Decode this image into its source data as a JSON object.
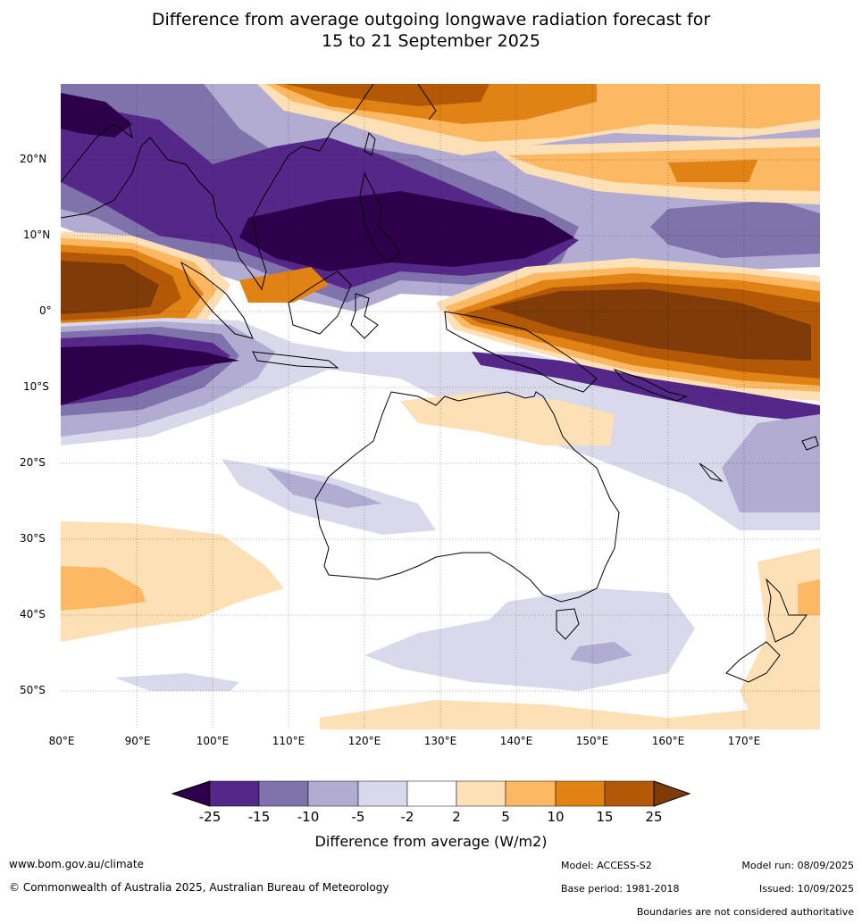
{
  "title": {
    "line1": "Difference from average outgoing longwave radiation forecast for",
    "line2": "15 to 21 September 2025"
  },
  "map": {
    "lat_labels": [
      "20°N",
      "10°N",
      "0°",
      "10°S",
      "20°S",
      "30°S",
      "40°S",
      "50°S"
    ],
    "lon_labels": [
      "80°E",
      "90°E",
      "100°E",
      "110°E",
      "120°E",
      "130°E",
      "140°E",
      "150°E",
      "160°E",
      "170°E"
    ],
    "legend_colors": {
      "strong_negative": "#2d004b",
      "neg_15_25": "#542788",
      "neg_10_15": "#8073ac",
      "neg_5_10": "#b2abd2",
      "neg_2_5": "#d8daeb",
      "neutral": "#ffffff",
      "pos_2_5": "#fee0b6",
      "pos_5_10": "#fdb863",
      "pos_10_15": "#e08214",
      "pos_15_25": "#b35806",
      "strong_positive": "#7f3b08"
    }
  },
  "colorbar": {
    "ticks": [
      "-25",
      "-15",
      "-10",
      "-5",
      "-2",
      "2",
      "5",
      "10",
      "15",
      "25"
    ],
    "label": "Difference from average (W/m2)"
  },
  "footer": {
    "website": "www.bom.gov.au/climate",
    "copyright": "© Commonwealth of Australia 2025, Australian Bureau of Meteorology",
    "model": "Model: ACCESS-S2",
    "base_period": "Base period: 1981-2018",
    "model_run": "Model run: 08/09/2025",
    "issued": "Issued: 10/09/2025",
    "disclaimer": "Boundaries are not considered authoritative"
  }
}
